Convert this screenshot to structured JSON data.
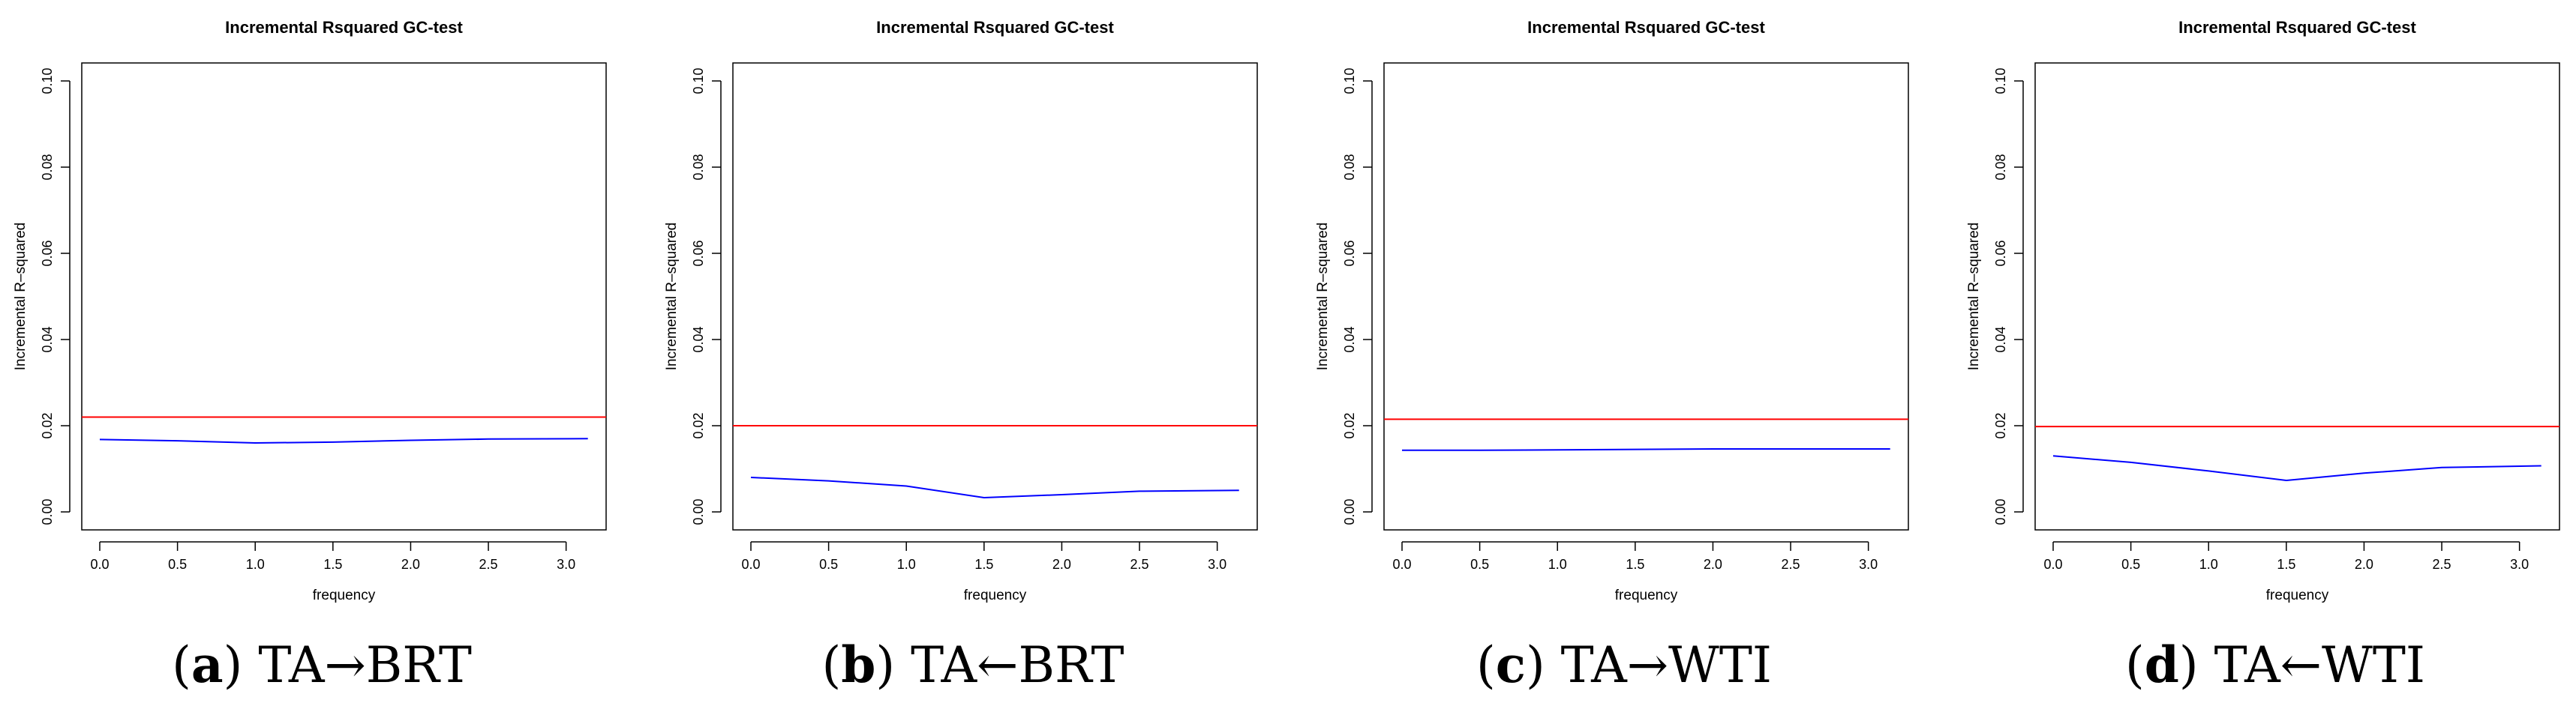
{
  "figure": {
    "panels": [
      {
        "label": "a",
        "caption": "TA→BRT"
      },
      {
        "label": "b",
        "caption": "TA←BRT"
      },
      {
        "label": "c",
        "caption": "TA→WTI"
      },
      {
        "label": "d",
        "caption": "TA←WTI"
      }
    ]
  },
  "chart_data": [
    {
      "type": "line",
      "title": "Incremental Rsquared GC-test",
      "xlabel": "frequency",
      "ylabel": "Incremental R–squared",
      "xlim": [
        0,
        3.14159
      ],
      "ylim": [
        0,
        0.1
      ],
      "xticks": [
        0.0,
        0.5,
        1.0,
        1.5,
        2.0,
        2.5,
        3.0
      ],
      "xtick_labels": [
        "0.0",
        "0.5",
        "1.0",
        "1.5",
        "2.0",
        "2.5",
        "3.0"
      ],
      "yticks": [
        0.0,
        0.02,
        0.04,
        0.06,
        0.08,
        0.1
      ],
      "ytick_labels": [
        "0.00",
        "0.02",
        "0.04",
        "0.06",
        "0.08",
        "0.10"
      ],
      "series": [
        {
          "name": "Incremental R-squared",
          "color": "#0000ff",
          "x": [
            0.0,
            0.5,
            1.0,
            1.5,
            2.0,
            2.5,
            3.14
          ],
          "y": [
            0.0168,
            0.0165,
            0.016,
            0.0162,
            0.0166,
            0.0169,
            0.017
          ]
        }
      ],
      "threshold": {
        "y": 0.022,
        "color": "#ff0000"
      }
    },
    {
      "type": "line",
      "title": "Incremental Rsquared GC-test",
      "xlabel": "frequency",
      "ylabel": "Incremental R–squared",
      "xlim": [
        0,
        3.14159
      ],
      "ylim": [
        0,
        0.1
      ],
      "xticks": [
        0.0,
        0.5,
        1.0,
        1.5,
        2.0,
        2.5,
        3.0
      ],
      "xtick_labels": [
        "0.0",
        "0.5",
        "1.0",
        "1.5",
        "2.0",
        "2.5",
        "3.0"
      ],
      "yticks": [
        0.0,
        0.02,
        0.04,
        0.06,
        0.08,
        0.1
      ],
      "ytick_labels": [
        "0.00",
        "0.02",
        "0.04",
        "0.06",
        "0.08",
        "0.10"
      ],
      "series": [
        {
          "name": "Incremental R-squared",
          "color": "#0000ff",
          "x": [
            0.0,
            0.5,
            1.0,
            1.5,
            2.0,
            2.5,
            3.14
          ],
          "y": [
            0.008,
            0.0072,
            0.006,
            0.0033,
            0.004,
            0.0048,
            0.005
          ]
        }
      ],
      "threshold": {
        "y": 0.02,
        "color": "#ff0000"
      }
    },
    {
      "type": "line",
      "title": "Incremental Rsquared GC-test",
      "xlabel": "frequency",
      "ylabel": "Incremental R–squared",
      "xlim": [
        0,
        3.14159
      ],
      "ylim": [
        0,
        0.1
      ],
      "xticks": [
        0.0,
        0.5,
        1.0,
        1.5,
        2.0,
        2.5,
        3.0
      ],
      "xtick_labels": [
        "0.0",
        "0.5",
        "1.0",
        "1.5",
        "2.0",
        "2.5",
        "3.0"
      ],
      "yticks": [
        0.0,
        0.02,
        0.04,
        0.06,
        0.08,
        0.1
      ],
      "ytick_labels": [
        "0.00",
        "0.02",
        "0.04",
        "0.06",
        "0.08",
        "0.10"
      ],
      "series": [
        {
          "name": "Incremental R-squared",
          "color": "#0000ff",
          "x": [
            0.0,
            0.5,
            1.0,
            1.5,
            2.0,
            2.5,
            3.14
          ],
          "y": [
            0.0143,
            0.0143,
            0.0144,
            0.0145,
            0.0146,
            0.0146,
            0.0146
          ]
        }
      ],
      "threshold": {
        "y": 0.0215,
        "color": "#ff0000"
      }
    },
    {
      "type": "line",
      "title": "Incremental Rsquared GC-test",
      "xlabel": "frequency",
      "ylabel": "Incremental R–squared",
      "xlim": [
        0,
        3.14159
      ],
      "ylim": [
        0,
        0.1
      ],
      "xticks": [
        0.0,
        0.5,
        1.0,
        1.5,
        2.0,
        2.5,
        3.0
      ],
      "xtick_labels": [
        "0.0",
        "0.5",
        "1.0",
        "1.5",
        "2.0",
        "2.5",
        "3.0"
      ],
      "yticks": [
        0.0,
        0.02,
        0.04,
        0.06,
        0.08,
        0.1
      ],
      "ytick_labels": [
        "0.00",
        "0.02",
        "0.04",
        "0.06",
        "0.08",
        "0.10"
      ],
      "series": [
        {
          "name": "Incremental R-squared",
          "color": "#0000ff",
          "x": [
            0.0,
            0.5,
            1.0,
            1.5,
            2.0,
            2.5,
            3.14
          ],
          "y": [
            0.013,
            0.0115,
            0.0095,
            0.0073,
            0.009,
            0.0103,
            0.0107
          ]
        }
      ],
      "threshold": {
        "y": 0.0198,
        "color": "#ff0000"
      }
    }
  ]
}
